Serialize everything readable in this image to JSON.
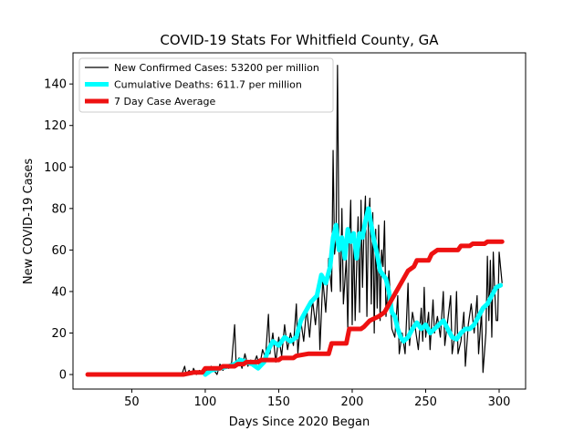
{
  "chart_data": {
    "type": "line",
    "title": "COVID-19 Stats For Whitfield County, GA",
    "xlabel": "Days Since 2020 Began",
    "ylabel": "New COVID-19 Cases",
    "xlim": [
      10,
      318
    ],
    "ylim": [
      -7,
      155
    ],
    "xticks": [
      50,
      100,
      150,
      200,
      250,
      300
    ],
    "yticks": [
      0,
      20,
      40,
      60,
      80,
      100,
      120,
      140
    ],
    "grid": false,
    "legend_position": "top-left",
    "series": [
      {
        "name": "New Confirmed Cases: 53200 per million",
        "color": "#000000",
        "points": [
          [
            20,
            0
          ],
          [
            30,
            0
          ],
          [
            40,
            0
          ],
          [
            50,
            0
          ],
          [
            60,
            0
          ],
          [
            70,
            0
          ],
          [
            80,
            0
          ],
          [
            84,
            0
          ],
          [
            86,
            4
          ],
          [
            87,
            0
          ],
          [
            89,
            2
          ],
          [
            91,
            0
          ],
          [
            92,
            3
          ],
          [
            94,
            0
          ],
          [
            96,
            2
          ],
          [
            98,
            1
          ],
          [
            100,
            3
          ],
          [
            102,
            1
          ],
          [
            104,
            4
          ],
          [
            106,
            2
          ],
          [
            108,
            0
          ],
          [
            110,
            5
          ],
          [
            112,
            2
          ],
          [
            114,
            4
          ],
          [
            116,
            3
          ],
          [
            118,
            6
          ],
          [
            120,
            24
          ],
          [
            121,
            5
          ],
          [
            123,
            8
          ],
          [
            125,
            3
          ],
          [
            127,
            10
          ],
          [
            129,
            4
          ],
          [
            131,
            7
          ],
          [
            133,
            5
          ],
          [
            135,
            9
          ],
          [
            137,
            4
          ],
          [
            139,
            12
          ],
          [
            141,
            8
          ],
          [
            143,
            29
          ],
          [
            144,
            10
          ],
          [
            146,
            20
          ],
          [
            148,
            6
          ],
          [
            150,
            18
          ],
          [
            152,
            9
          ],
          [
            154,
            24
          ],
          [
            156,
            12
          ],
          [
            158,
            20
          ],
          [
            160,
            14
          ],
          [
            162,
            34
          ],
          [
            163,
            10
          ],
          [
            165,
            26
          ],
          [
            167,
            16
          ],
          [
            169,
            32
          ],
          [
            171,
            18
          ],
          [
            173,
            36
          ],
          [
            175,
            24
          ],
          [
            177,
            40
          ],
          [
            178,
            12
          ],
          [
            180,
            46
          ],
          [
            182,
            30
          ],
          [
            184,
            56
          ],
          [
            186,
            40
          ],
          [
            187,
            108
          ],
          [
            188,
            58
          ],
          [
            189,
            65
          ],
          [
            190,
            149
          ],
          [
            191,
            62
          ],
          [
            192,
            40
          ],
          [
            193,
            80
          ],
          [
            194,
            34
          ],
          [
            196,
            56
          ],
          [
            197,
            22
          ],
          [
            198,
            62
          ],
          [
            199,
            84
          ],
          [
            200,
            24
          ],
          [
            201,
            68
          ],
          [
            202,
            26
          ],
          [
            204,
            76
          ],
          [
            205,
            30
          ],
          [
            206,
            84
          ],
          [
            207,
            42
          ],
          [
            208,
            70
          ],
          [
            209,
            86
          ],
          [
            210,
            28
          ],
          [
            211,
            72
          ],
          [
            212,
            85
          ],
          [
            213,
            34
          ],
          [
            214,
            78
          ],
          [
            215,
            20
          ],
          [
            216,
            70
          ],
          [
            217,
            32
          ],
          [
            218,
            72
          ],
          [
            219,
            26
          ],
          [
            220,
            60
          ],
          [
            221,
            52
          ],
          [
            222,
            74
          ],
          [
            223,
            28
          ],
          [
            225,
            50
          ],
          [
            227,
            22
          ],
          [
            229,
            18
          ],
          [
            231,
            38
          ],
          [
            232,
            10
          ],
          [
            234,
            20
          ],
          [
            236,
            10
          ],
          [
            238,
            44
          ],
          [
            239,
            14
          ],
          [
            241,
            30
          ],
          [
            243,
            22
          ],
          [
            245,
            12
          ],
          [
            247,
            32
          ],
          [
            248,
            16
          ],
          [
            249,
            42
          ],
          [
            250,
            18
          ],
          [
            252,
            30
          ],
          [
            253,
            12
          ],
          [
            255,
            36
          ],
          [
            256,
            20
          ],
          [
            258,
            28
          ],
          [
            260,
            18
          ],
          [
            262,
            40
          ],
          [
            263,
            14
          ],
          [
            265,
            26
          ],
          [
            267,
            38
          ],
          [
            268,
            10
          ],
          [
            270,
            20
          ],
          [
            271,
            40
          ],
          [
            272,
            10
          ],
          [
            274,
            16
          ],
          [
            276,
            30
          ],
          [
            277,
            4
          ],
          [
            279,
            24
          ],
          [
            281,
            34
          ],
          [
            283,
            20
          ],
          [
            285,
            38
          ],
          [
            286,
            10
          ],
          [
            288,
            30
          ],
          [
            289,
            1
          ],
          [
            291,
            20
          ],
          [
            292,
            57
          ],
          [
            293,
            26
          ],
          [
            294,
            55
          ],
          [
            295,
            18
          ],
          [
            296,
            59
          ],
          [
            297,
            40
          ],
          [
            298,
            26
          ],
          [
            299,
            26
          ],
          [
            300,
            59
          ],
          [
            302,
            44
          ]
        ]
      },
      {
        "name": "Cumulative Deaths: 611.7 per million",
        "color": "#00ffff",
        "points": [
          [
            100,
            0
          ],
          [
            104,
            2
          ],
          [
            110,
            3
          ],
          [
            116,
            4
          ],
          [
            120,
            5
          ],
          [
            124,
            7
          ],
          [
            128,
            6
          ],
          [
            132,
            5
          ],
          [
            136,
            3
          ],
          [
            140,
            6
          ],
          [
            143,
            12
          ],
          [
            146,
            16
          ],
          [
            150,
            14
          ],
          [
            154,
            18
          ],
          [
            158,
            16
          ],
          [
            162,
            18
          ],
          [
            165,
            26
          ],
          [
            168,
            30
          ],
          [
            172,
            35
          ],
          [
            176,
            38
          ],
          [
            179,
            48
          ],
          [
            182,
            44
          ],
          [
            185,
            52
          ],
          [
            187,
            66
          ],
          [
            189,
            72
          ],
          [
            191,
            60
          ],
          [
            193,
            66
          ],
          [
            195,
            56
          ],
          [
            197,
            70
          ],
          [
            199,
            64
          ],
          [
            201,
            68
          ],
          [
            203,
            56
          ],
          [
            205,
            68
          ],
          [
            207,
            66
          ],
          [
            209,
            74
          ],
          [
            211,
            80
          ],
          [
            213,
            72
          ],
          [
            215,
            64
          ],
          [
            217,
            58
          ],
          [
            219,
            50
          ],
          [
            221,
            48
          ],
          [
            223,
            46
          ],
          [
            225,
            40
          ],
          [
            227,
            30
          ],
          [
            229,
            28
          ],
          [
            231,
            22
          ],
          [
            233,
            18
          ],
          [
            235,
            16
          ],
          [
            238,
            18
          ],
          [
            241,
            22
          ],
          [
            244,
            25
          ],
          [
            247,
            22
          ],
          [
            250,
            24
          ],
          [
            253,
            20
          ],
          [
            256,
            22
          ],
          [
            259,
            24
          ],
          [
            262,
            26
          ],
          [
            265,
            22
          ],
          [
            268,
            18
          ],
          [
            271,
            17
          ],
          [
            274,
            20
          ],
          [
            277,
            22
          ],
          [
            280,
            22
          ],
          [
            283,
            24
          ],
          [
            286,
            28
          ],
          [
            289,
            32
          ],
          [
            292,
            34
          ],
          [
            295,
            38
          ],
          [
            298,
            42
          ],
          [
            301,
            43
          ]
        ]
      },
      {
        "name": "7 Day Case Average",
        "color": "#ee1111",
        "points": [
          [
            20,
            0
          ],
          [
            85,
            0
          ],
          [
            92,
            1
          ],
          [
            98,
            1
          ],
          [
            100,
            3
          ],
          [
            110,
            3
          ],
          [
            112,
            4
          ],
          [
            120,
            4
          ],
          [
            122,
            5
          ],
          [
            126,
            5
          ],
          [
            128,
            6
          ],
          [
            136,
            6
          ],
          [
            138,
            7
          ],
          [
            150,
            7
          ],
          [
            152,
            8
          ],
          [
            160,
            8
          ],
          [
            162,
            9
          ],
          [
            170,
            10
          ],
          [
            184,
            10
          ],
          [
            186,
            15
          ],
          [
            196,
            15
          ],
          [
            198,
            22
          ],
          [
            206,
            22
          ],
          [
            208,
            23
          ],
          [
            212,
            26
          ],
          [
            218,
            28
          ],
          [
            222,
            30
          ],
          [
            226,
            35
          ],
          [
            230,
            40
          ],
          [
            234,
            45
          ],
          [
            238,
            50
          ],
          [
            242,
            52
          ],
          [
            244,
            55
          ],
          [
            252,
            55
          ],
          [
            254,
            58
          ],
          [
            258,
            60
          ],
          [
            272,
            60
          ],
          [
            274,
            62
          ],
          [
            280,
            62
          ],
          [
            282,
            63
          ],
          [
            290,
            63
          ],
          [
            292,
            64
          ],
          [
            302,
            64
          ]
        ]
      }
    ]
  }
}
